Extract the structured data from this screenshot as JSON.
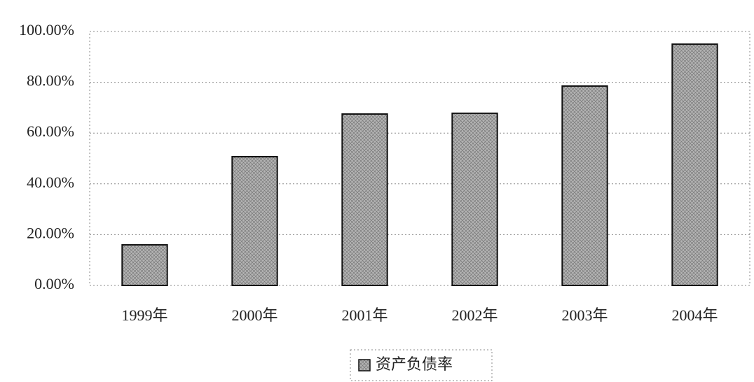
{
  "chart_data": {
    "type": "bar",
    "categories": [
      "1999年",
      "2000年",
      "2001年",
      "2002年",
      "2003年",
      "2004年"
    ],
    "series": [
      {
        "name": "资产负债率",
        "color": "#b4b4b4",
        "values": [
          16.0,
          50.7,
          67.5,
          67.8,
          78.5,
          95.0
        ]
      }
    ],
    "ylim": [
      0,
      100
    ],
    "yticks": [
      {
        "value": 0,
        "label": "0.00%"
      },
      {
        "value": 20,
        "label": "20.00%"
      },
      {
        "value": 40,
        "label": "40.00%"
      },
      {
        "value": 60,
        "label": "60.00%"
      },
      {
        "value": 80,
        "label": "80.00%"
      },
      {
        "value": 100,
        "label": "100.00%"
      }
    ],
    "grid": true,
    "legend": "bottom"
  }
}
